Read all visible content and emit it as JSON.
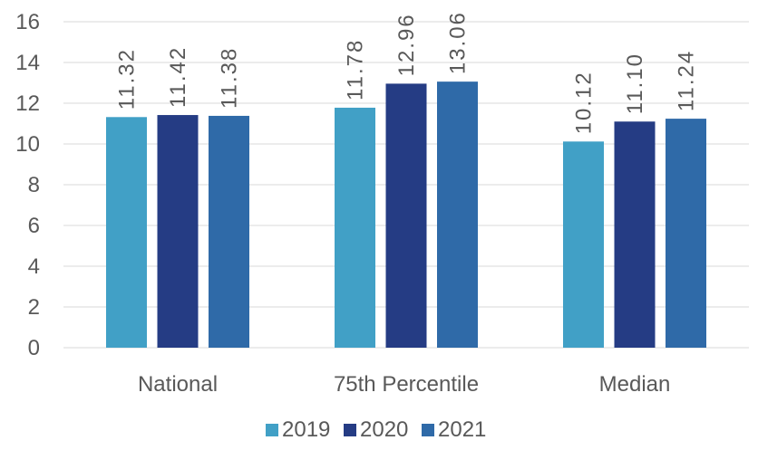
{
  "chart_data": {
    "type": "bar",
    "title": "",
    "xlabel": "",
    "ylabel": "",
    "categories": [
      "National",
      "75th Percentile",
      "Median"
    ],
    "series": [
      {
        "name": "2019",
        "color": "#41a0c6",
        "values": [
          11.32,
          11.78,
          10.12
        ],
        "labels": [
          "11.32",
          "11.78",
          "10.12"
        ]
      },
      {
        "name": "2020",
        "color": "#253c84",
        "values": [
          11.42,
          12.96,
          11.1
        ],
        "labels": [
          "11.42",
          "12.96",
          "11.10"
        ]
      },
      {
        "name": "2021",
        "color": "#2f6aa8",
        "values": [
          11.38,
          13.06,
          11.24
        ],
        "labels": [
          "11.38",
          "13.06",
          "11.24"
        ]
      }
    ],
    "ylim": [
      0,
      16
    ],
    "yticks": [
      "0",
      "2",
      "4",
      "6",
      "8",
      "10",
      "12",
      "14",
      "16"
    ],
    "grid": true,
    "legend_position": "bottom"
  }
}
